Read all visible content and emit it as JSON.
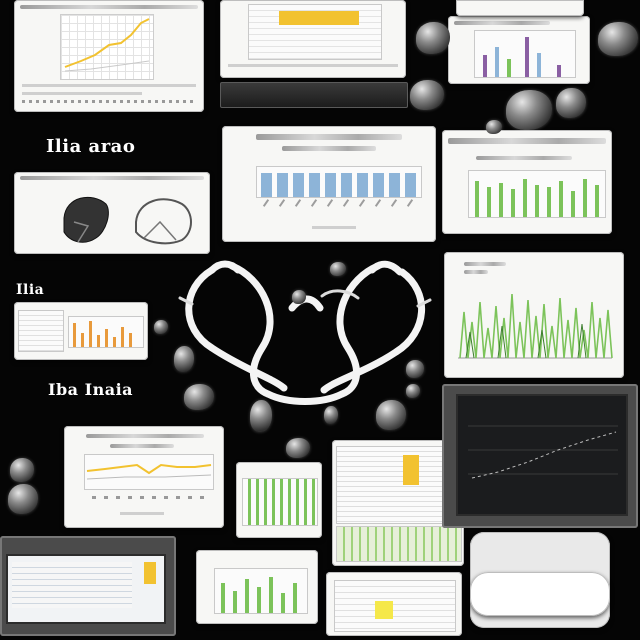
{
  "labels": {
    "heading_1": "Ilia arao",
    "heading_2": "Ilia",
    "heading_3": "Iba Inaia"
  },
  "colors": {
    "background": "#050505",
    "card": "#f7f7f5",
    "chart_blue": "#8db4d8",
    "chart_green": "#7cc35a",
    "chart_yellow": "#f2c230",
    "chart_orange": "#e89a3c",
    "chart_purple": "#8a5fa3",
    "ornament": "#f4f4f4"
  },
  "icons": [
    "swirl-ornament-icon",
    "pebble-icon",
    "monitor-icon",
    "anatomy-sketch-icon"
  ]
}
